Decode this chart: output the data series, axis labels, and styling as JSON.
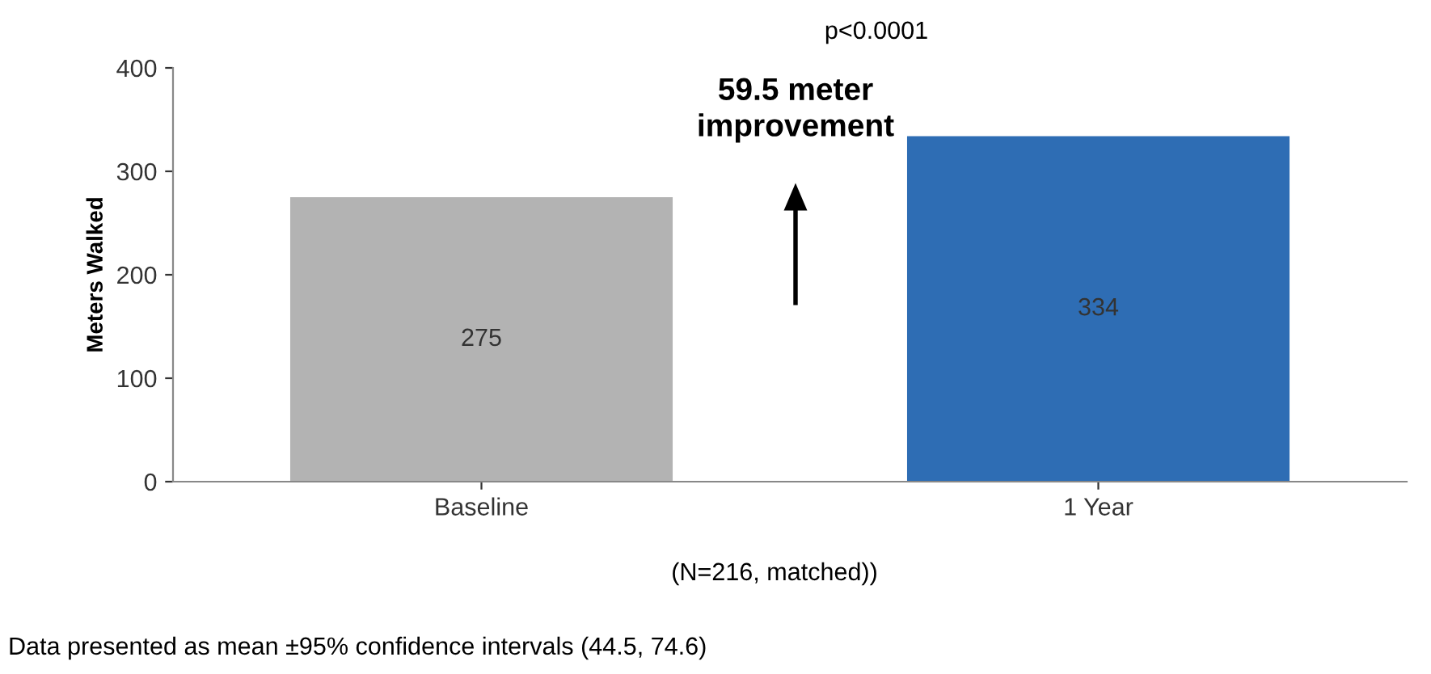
{
  "chart_data": {
    "type": "bar",
    "ylabel": "Meters Walked",
    "categories": [
      "Baseline",
      "1 Year"
    ],
    "values": [
      275,
      334
    ],
    "colors": [
      "#b3b3b3",
      "#2e6db4"
    ],
    "ylim": [
      0,
      400
    ],
    "yticks": [
      0,
      100,
      200,
      300,
      400
    ],
    "data_labels": true,
    "grid": false,
    "legend": false,
    "annotations": [
      "p<0.0001",
      "59.5 meter\nimprovement",
      "(N=216, matched))",
      "Data presented as mean ±95% confidence intervals (44.5, 74.6)"
    ]
  }
}
